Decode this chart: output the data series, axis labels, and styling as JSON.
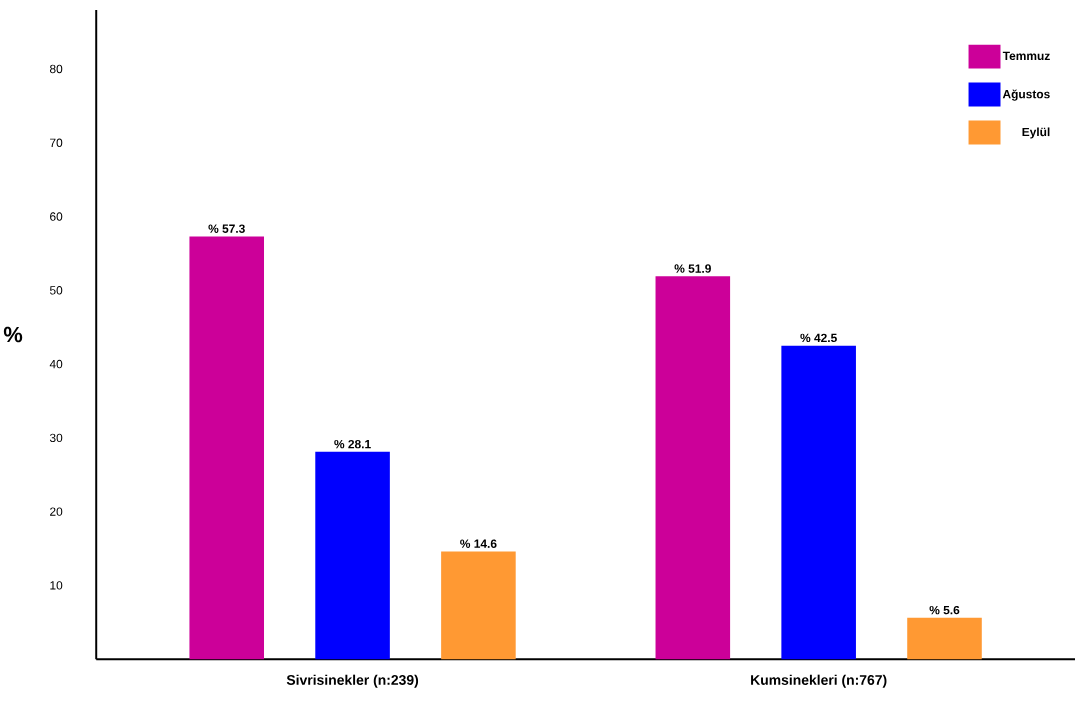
{
  "chart_data": {
    "type": "bar",
    "ylabel": "%",
    "categories": [
      "Sivrisinekler (n:239)",
      "Kumsinekleri (n:767)"
    ],
    "series": [
      {
        "name": "Temmuz",
        "color": "#cc0099",
        "values": [
          57.3,
          51.9
        ],
        "value_labels": [
          "% 57.3",
          "% 51.9"
        ]
      },
      {
        "name": "Ağustos",
        "color": "#0000ff",
        "values": [
          28.1,
          42.5
        ],
        "value_labels": [
          "% 28.1",
          "% 42.5"
        ]
      },
      {
        "name": "Eylül",
        "color": "#ff9933",
        "values": [
          14.6,
          5.6
        ],
        "value_labels": [
          "% 14.6",
          "% 5.6"
        ]
      }
    ],
    "ylim": [
      0,
      88
    ],
    "yticks": [
      10,
      20,
      30,
      40,
      50,
      60,
      70,
      80
    ],
    "grid": false,
    "legend": "top right"
  }
}
